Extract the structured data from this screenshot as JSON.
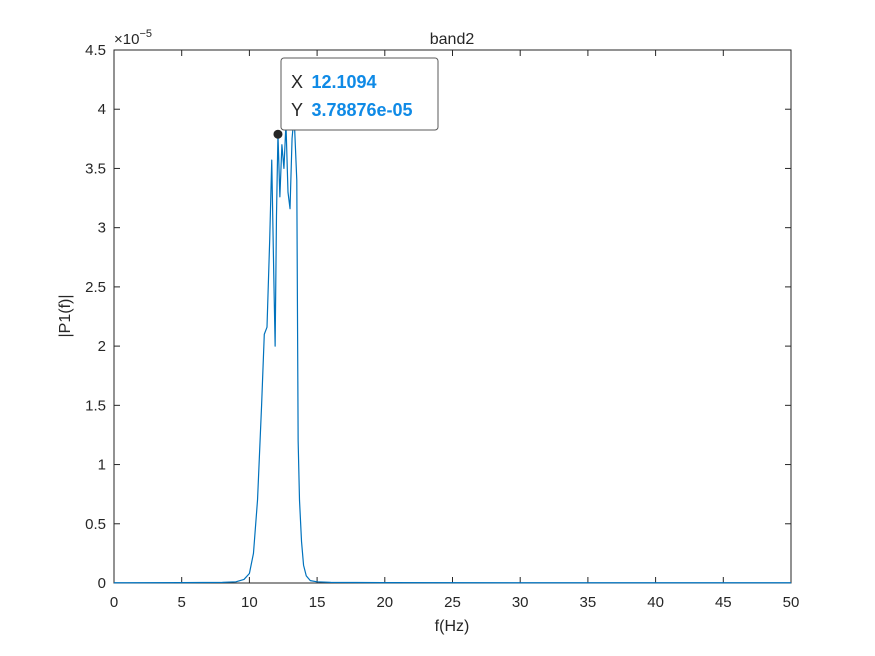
{
  "chart_data": {
    "type": "line",
    "title": "band2",
    "xlabel": "f(Hz)",
    "ylabel": "|P1(f)|",
    "y_exponent_label": "×10",
    "y_exponent_power": "−5",
    "xlim": [
      0,
      50
    ],
    "ylim": [
      0,
      4.5
    ],
    "x_ticks": [
      0,
      5,
      10,
      15,
      20,
      25,
      30,
      35,
      40,
      45,
      50
    ],
    "y_ticks": [
      0,
      0.5,
      1,
      1.5,
      2,
      2.5,
      3,
      3.5,
      4,
      4.5
    ],
    "x_tick_labels": [
      "0",
      "5",
      "10",
      "15",
      "20",
      "25",
      "30",
      "35",
      "40",
      "45",
      "50"
    ],
    "y_tick_labels": [
      "0",
      "0.5",
      "1",
      "1.5",
      "2",
      "2.5",
      "3",
      "3.5",
      "4",
      "4.5"
    ],
    "grid": false,
    "series": [
      {
        "color": "#0072bd",
        "x": [
          0,
          5,
          8.0,
          9.0,
          9.6,
          10.0,
          10.3,
          10.6,
          10.9,
          11.1,
          11.3,
          11.5,
          11.65,
          11.8,
          11.9,
          12.0,
          12.1094,
          12.25,
          12.4,
          12.55,
          12.7,
          12.85,
          13.0,
          13.15,
          13.3,
          13.5,
          13.6,
          13.7,
          13.85,
          14.0,
          14.2,
          14.5,
          15.0,
          16.0,
          20,
          30,
          40,
          50
        ],
        "y": [
          0.002,
          0.003,
          0.005,
          0.01,
          0.03,
          0.08,
          0.25,
          0.7,
          1.5,
          2.1,
          2.16,
          2.9,
          3.57,
          2.6,
          2.0,
          3.1,
          3.79,
          3.26,
          3.7,
          3.5,
          3.88,
          3.3,
          3.16,
          3.75,
          3.95,
          3.4,
          1.2,
          0.7,
          0.35,
          0.15,
          0.06,
          0.02,
          0.01,
          0.005,
          0.003,
          0.002,
          0.002,
          0.002
        ]
      }
    ]
  },
  "datatip": {
    "x_key": "X",
    "x_value": "12.1094",
    "y_key": "Y",
    "y_value": "3.78876e-05",
    "x": 12.1094,
    "y": 3.78876
  }
}
